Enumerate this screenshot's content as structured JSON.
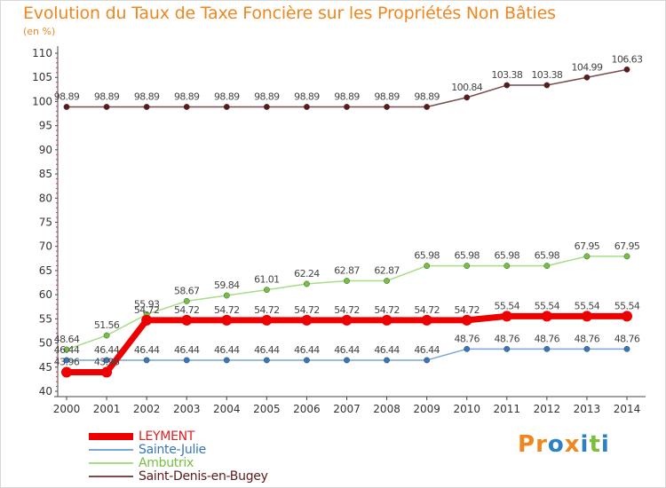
{
  "title": "Evolution du Taux de Taxe Foncière sur les Propriétés Non Bâties",
  "unit": "(en %)",
  "logo": {
    "text": "Proxiti",
    "letters": [
      {
        "ch": "P",
        "color": "#f0861e"
      },
      {
        "ch": "r",
        "color": "#f0861e"
      },
      {
        "ch": "o",
        "color": "#2a82c4"
      },
      {
        "ch": "x",
        "color": "#f0861e"
      },
      {
        "ch": "i",
        "color": "#2a82c4"
      },
      {
        "ch": "t",
        "color": "#7bbf3a"
      },
      {
        "ch": "i",
        "color": "#2a82c4"
      }
    ]
  },
  "chart_data": {
    "type": "line",
    "title": "Evolution du Taux de Taxe Foncière sur les Propriétés Non Bâties",
    "ylabel": "(en %)",
    "xlabel": "",
    "ylim": [
      40,
      110
    ],
    "yticks": [
      40,
      45,
      50,
      55,
      60,
      65,
      70,
      75,
      80,
      85,
      90,
      95,
      100,
      105,
      110
    ],
    "grid": false,
    "legend_position": "bottom-left",
    "categories": [
      "2000",
      "2001",
      "2002",
      "2003",
      "2004",
      "2005",
      "2006",
      "2007",
      "2008",
      "2009",
      "2010",
      "2011",
      "2012",
      "2013",
      "2014"
    ],
    "series": [
      {
        "name": "LEYMENT",
        "color": "#ee0000",
        "marker": "#ee0000",
        "width": 7,
        "values": [
          43.96,
          43.96,
          54.72,
          54.72,
          54.72,
          54.72,
          54.72,
          54.72,
          54.72,
          54.72,
          54.72,
          55.54,
          55.54,
          55.54,
          55.54
        ],
        "labels": [
          "43.96",
          "43.96",
          "54.72",
          "54.72",
          "54.72",
          "54.72",
          "54.72",
          "54.72",
          "54.72",
          "54.72",
          "54.72",
          "55.54",
          "55.54",
          "55.54",
          "55.54"
        ]
      },
      {
        "name": "Sainte-Julie",
        "color": "#7aa6d8",
        "marker": "#3577b8",
        "width": 1.5,
        "values": [
          46.44,
          46.44,
          46.44,
          46.44,
          46.44,
          46.44,
          46.44,
          46.44,
          46.44,
          46.44,
          48.76,
          48.76,
          48.76,
          48.76,
          48.76
        ],
        "labels": [
          "46.44",
          "46.44",
          "46.44",
          "46.44",
          "46.44",
          "46.44",
          "46.44",
          "46.44",
          "46.44",
          "46.44",
          "48.76",
          "48.76",
          "48.76",
          "48.76",
          "48.76"
        ]
      },
      {
        "name": "Ambutrix",
        "color": "#a9dc86",
        "marker": "#74c043",
        "width": 1.5,
        "values": [
          48.64,
          51.56,
          55.93,
          58.67,
          59.84,
          61.01,
          62.24,
          62.87,
          62.87,
          65.98,
          65.98,
          65.98,
          65.98,
          67.95,
          67.95
        ],
        "labels": [
          "48.64",
          "51.56",
          "55.93",
          "58.67",
          "59.84",
          "61.01",
          "62.24",
          "62.87",
          "62.87",
          "65.98",
          "65.98",
          "65.98",
          "65.98",
          "67.95",
          "67.95"
        ]
      },
      {
        "name": "Saint-Denis-en-Bugey",
        "color": "#7a4b4b",
        "marker": "#5c1b1b",
        "width": 1.5,
        "values": [
          98.89,
          98.89,
          98.89,
          98.89,
          98.89,
          98.89,
          98.89,
          98.89,
          98.89,
          98.89,
          100.84,
          103.38,
          103.38,
          104.99,
          106.63
        ],
        "labels": [
          "98.89",
          "98.89",
          "98.89",
          "98.89",
          "98.89",
          "98.89",
          "98.89",
          "98.89",
          "98.89",
          "98.89",
          "100.84",
          "103.38",
          "103.38",
          "104.99",
          "106.63"
        ]
      }
    ]
  }
}
